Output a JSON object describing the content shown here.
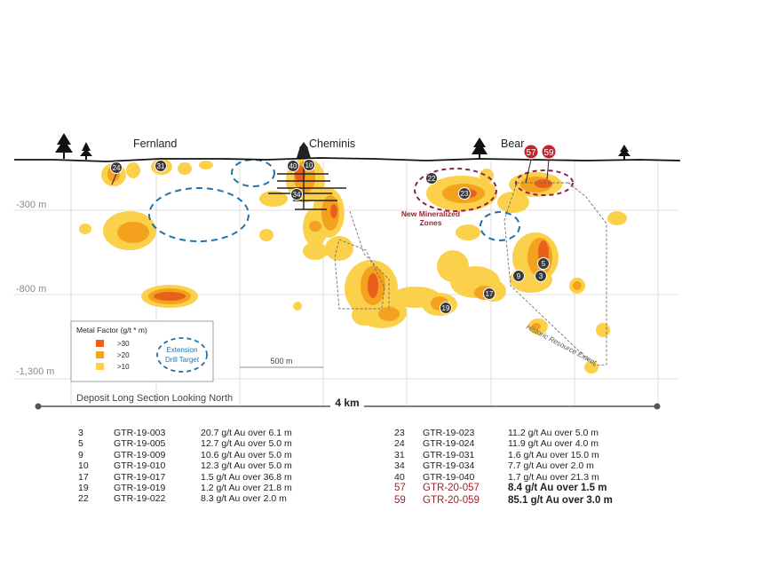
{
  "towns": {
    "fernland": "Fernland",
    "cheminis": "Cheminis",
    "bear": "Bear"
  },
  "depth_labels": [
    "-300 m",
    "-800 m",
    "-1,300 m"
  ],
  "scale_bar_label": "500 m",
  "section_caption": "Deposit Long Section Looking North",
  "width_label": "4 km",
  "new_zone_label": [
    "New Mineralized",
    "Zones"
  ],
  "historic_label": "Historic Resource Extent",
  "legend": {
    "title": "Metal Factor (g/t * m)",
    "items": [
      {
        "label": ">30",
        "color": "#e8601c"
      },
      {
        "label": ">20",
        "color": "#f4a11d"
      },
      {
        "label": ">10",
        "color": "#fbd14b"
      }
    ],
    "target_label": [
      "Extension",
      "Drill Target"
    ]
  },
  "hole_markers": [
    "24",
    "31",
    "40",
    "10",
    "34",
    "22",
    "23",
    "57",
    "59",
    "5",
    "9",
    "3",
    "17",
    "19"
  ],
  "drill_results_left": [
    {
      "num": "3",
      "id": "GTR-19-003",
      "result": "20.7 g/t Au over 6.1 m"
    },
    {
      "num": "5",
      "id": "GTR-19-005",
      "result": "12.7 g/t Au over 5.0 m"
    },
    {
      "num": "9",
      "id": "GTR-19-009",
      "result": "10.6 g/t Au over 5.0 m"
    },
    {
      "num": "10",
      "id": "GTR-19-010",
      "result": "12.3 g/t Au over 5.0 m"
    },
    {
      "num": "17",
      "id": "GTR-19-017",
      "result": "1.5 g/t Au over 36.8 m"
    },
    {
      "num": "19",
      "id": "GTR-19-019",
      "result": "1.2 g/t Au over 21.8 m"
    },
    {
      "num": "22",
      "id": "GTR-19-022",
      "result": "8.3 g/t Au over 2.0 m"
    }
  ],
  "drill_results_right": [
    {
      "num": "23",
      "id": "GTR-19-023",
      "result": "11.2 g/t Au over 5.0 m"
    },
    {
      "num": "24",
      "id": "GTR-19-024",
      "result": "11.9 g/t Au over 4.0 m"
    },
    {
      "num": "31",
      "id": "GTR-19-031",
      "result": "1.6 g/t Au over 15.0 m"
    },
    {
      "num": "34",
      "id": "GTR-19-034",
      "result": "7.7 g/t Au over 2.0 m"
    },
    {
      "num": "40",
      "id": "GTR-19-040",
      "result": "1.7 g/t Au over 21.3 m"
    },
    {
      "num": "57",
      "id": "GTR-20-057",
      "result": "8.4 g/t Au over 1.5 m"
    },
    {
      "num": "59",
      "id": "GTR-20-059",
      "result": "85.1 g/t Au over 3.0 m"
    }
  ],
  "colors": {
    "high": "#e8601c",
    "mid": "#f4a11d",
    "low": "#fbd14b",
    "target": "#1f73a8",
    "new_zone": "#8b2252",
    "highlight": "#a3222a"
  }
}
